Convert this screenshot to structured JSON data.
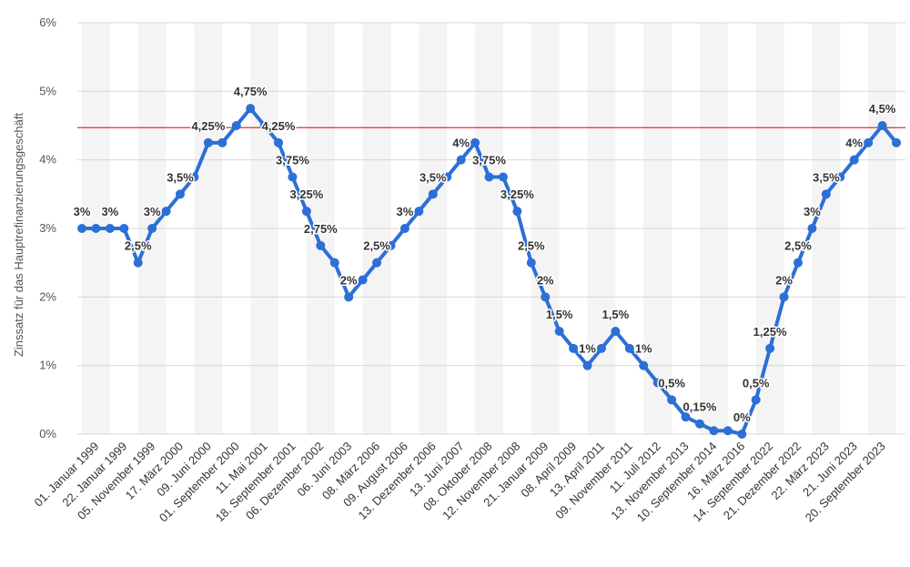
{
  "chart_data": {
    "type": "line",
    "title": "",
    "xlabel": "",
    "ylabel": "Zinssatz für das Hauptrefinanzierungsgeschäft",
    "ylim": [
      0,
      6
    ],
    "y_ticks": [
      "0%",
      "1%",
      "2%",
      "3%",
      "4%",
      "5%",
      "6%"
    ],
    "x_tick_labels": [
      "01. Januar 1999",
      "22. Januar 1999",
      "05. November 1999",
      "17. März 2000",
      "09. Juni 2000",
      "01. September 2000",
      "11. Mai 2001",
      "18. September 2001",
      "06. Dezember 2002",
      "06. Juni 2003",
      "08. März 2006",
      "09. August 2006",
      "13. Dezember 2006",
      "13. Juni 2007",
      "08. Oktober 2008",
      "12. November 2008",
      "21. Januar 2009",
      "08. April 2009",
      "13. April 2011",
      "09. November 2011",
      "11. Juli 2012",
      "13. November 2013",
      "10. September 2014",
      "16. März 2016",
      "14. September 2022",
      "21. Dezember 2022",
      "22. März 2023",
      "21. Juni 2023",
      "20. September 2023"
    ],
    "reference_line": {
      "value": 4.47,
      "color": "#e03030"
    },
    "series": [
      {
        "name": "Zinssatz",
        "color": "#2c6fd6",
        "values": [
          3,
          3,
          3,
          3,
          2.5,
          3,
          3.25,
          3.5,
          3.75,
          4.25,
          4.25,
          4.5,
          4.75,
          4.5,
          4.25,
          3.75,
          3.25,
          2.75,
          2.5,
          2,
          2.25,
          2.5,
          2.75,
          3,
          3.25,
          3.5,
          3.75,
          4,
          4.25,
          3.75,
          3.75,
          3.25,
          2.5,
          2,
          1.5,
          1.25,
          1,
          1.25,
          1.5,
          1.25,
          1,
          0.75,
          0.5,
          0.25,
          0.15,
          0.05,
          0.05,
          0,
          0.5,
          1.25,
          2,
          2.5,
          3,
          3.5,
          3.75,
          4,
          4.25,
          4.5,
          4.25
        ]
      }
    ],
    "data_labels": [
      {
        "index": 0,
        "text": "3%"
      },
      {
        "index": 2,
        "text": "3%"
      },
      {
        "index": 4,
        "text": "2,5%"
      },
      {
        "index": 5,
        "text": "3%"
      },
      {
        "index": 7,
        "text": "3,5%"
      },
      {
        "index": 9,
        "text": "4,25%"
      },
      {
        "index": 12,
        "text": "4,75%"
      },
      {
        "index": 14,
        "text": "4,25%"
      },
      {
        "index": 15,
        "text": "3,75%"
      },
      {
        "index": 16,
        "text": "3,25%"
      },
      {
        "index": 17,
        "text": "2,75%"
      },
      {
        "index": 19,
        "text": "2%"
      },
      {
        "index": 21,
        "text": "2,5%"
      },
      {
        "index": 23,
        "text": "3%"
      },
      {
        "index": 25,
        "text": "3,5%"
      },
      {
        "index": 27,
        "text": "4%"
      },
      {
        "index": 29,
        "text": "3,75%"
      },
      {
        "index": 31,
        "text": "3,25%"
      },
      {
        "index": 32,
        "text": "2,5%"
      },
      {
        "index": 33,
        "text": "2%"
      },
      {
        "index": 34,
        "text": "1,5%"
      },
      {
        "index": 36,
        "text": "1%"
      },
      {
        "index": 38,
        "text": "1,5%"
      },
      {
        "index": 40,
        "text": "1%"
      },
      {
        "index": 42,
        "text": "0,5%"
      },
      {
        "index": 44,
        "text": "0,15%"
      },
      {
        "index": 47,
        "text": "0%"
      },
      {
        "index": 48,
        "text": "0,5%"
      },
      {
        "index": 49,
        "text": "1,25%"
      },
      {
        "index": 50,
        "text": "2%"
      },
      {
        "index": 51,
        "text": "2,5%"
      },
      {
        "index": 52,
        "text": "3%"
      },
      {
        "index": 53,
        "text": "3,5%"
      },
      {
        "index": 55,
        "text": "4%"
      },
      {
        "index": 57,
        "text": "4,5%"
      }
    ]
  }
}
